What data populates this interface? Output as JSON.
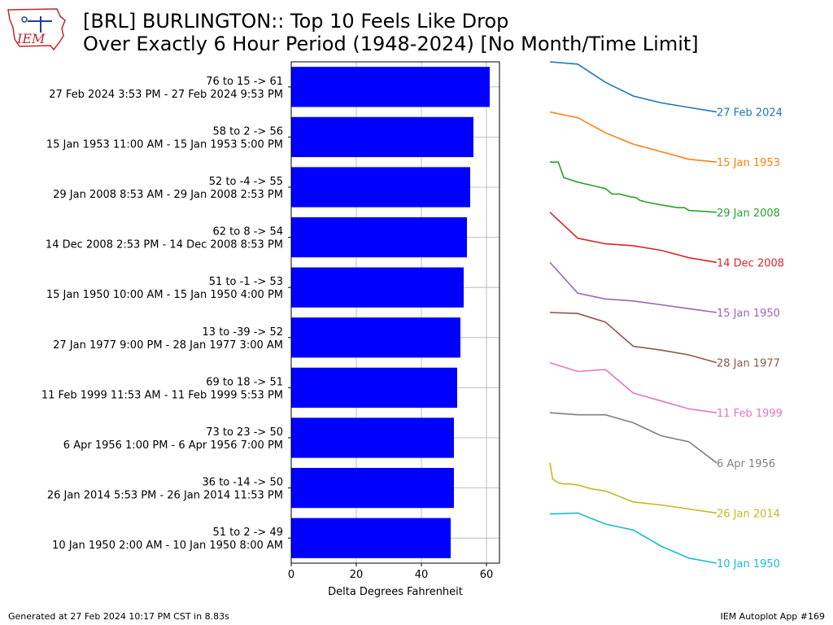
{
  "header": {
    "title_line1": "[BRL] BURLINGTON:: Top 10 Feels Like Drop",
    "title_line2": "Over Exactly 6 Hour Period (1948-2024) [No Month/Time Limit]",
    "logo_text": "IEM"
  },
  "footer": {
    "generated": "Generated at 27 Feb 2024 10:17 PM CST in 8.83s",
    "app": "IEM Autoplot App #169"
  },
  "colors": {
    "bar": "#0000ff",
    "logo": "#c0272d",
    "grid": "#b0b0b0"
  },
  "chart_data": {
    "type": "bar",
    "orientation": "horizontal",
    "xlabel": "Delta Degrees Fahrenheit",
    "xlim": [
      0,
      64
    ],
    "xticks": [
      0,
      20,
      40,
      60
    ],
    "grid": true,
    "rows": [
      {
        "label1": "76 to 15 -> 61",
        "label2": "27 Feb 2024 3:53 PM - 27 Feb 2024 9:53 PM",
        "value": 61,
        "trace_label": "27 Feb 2024",
        "color": "#1f77b4",
        "trace": [
          [
            0,
            76
          ],
          [
            0.5,
            75
          ],
          [
            1,
            67
          ],
          [
            1.5,
            61
          ],
          [
            2,
            58
          ],
          [
            2.5,
            56
          ],
          [
            3,
            54
          ]
        ]
      },
      {
        "label1": "58 to 2 -> 56",
        "label2": "15 Jan 1953 11:00 AM - 15 Jan 1953 5:00 PM",
        "value": 56,
        "trace_label": "15 Jan 1953",
        "color": "#ff7f0e",
        "trace": [
          [
            0,
            58
          ],
          [
            0.5,
            52
          ],
          [
            1,
            36
          ],
          [
            1.5,
            24
          ],
          [
            2,
            16
          ],
          [
            2.5,
            8
          ],
          [
            3,
            5
          ]
        ]
      },
      {
        "label1": "52 to -4 -> 55",
        "label2": "29 Jan 2008 8:53 AM - 29 Jan 2008 2:53 PM",
        "value": 55,
        "trace_label": "29 Jan 2008",
        "color": "#2ca02c",
        "trace": [
          [
            0,
            52
          ],
          [
            0.15,
            52
          ],
          [
            0.25,
            35
          ],
          [
            0.5,
            30
          ],
          [
            0.85,
            25
          ],
          [
            1,
            23
          ],
          [
            1.12,
            17
          ],
          [
            1.25,
            17
          ],
          [
            1.45,
            14
          ],
          [
            1.55,
            13
          ],
          [
            1.62,
            10
          ],
          [
            1.75,
            8
          ],
          [
            2,
            5
          ],
          [
            2.3,
            2
          ],
          [
            2.42,
            2
          ],
          [
            2.5,
            -1
          ],
          [
            2.75,
            -2
          ],
          [
            3,
            -3
          ]
        ]
      },
      {
        "label1": "62 to 8 -> 54",
        "label2": "14 Dec 2008 2:53 PM - 14 Dec 2008 8:53 PM",
        "value": 54,
        "trace_label": "14 Dec 2008",
        "color": "#d62728",
        "trace": [
          [
            0,
            62
          ],
          [
            0.5,
            34
          ],
          [
            1,
            28
          ],
          [
            1.5,
            26
          ],
          [
            2,
            21
          ],
          [
            2.5,
            13
          ],
          [
            3,
            8
          ]
        ]
      },
      {
        "label1": "51 to -1 -> 53",
        "label2": "15 Jan 1950 10:00 AM - 15 Jan 1950 4:00 PM",
        "value": 53,
        "trace_label": "15 Jan 1950",
        "color": "#9467bd",
        "trace": [
          [
            0,
            51
          ],
          [
            0.5,
            19
          ],
          [
            1,
            13
          ],
          [
            1.5,
            11
          ],
          [
            2,
            7
          ],
          [
            2.5,
            3
          ],
          [
            3,
            -1
          ]
        ]
      },
      {
        "label1": "13 to -39 -> 52",
        "label2": "27 Jan 1977 9:00 PM - 28 Jan 1977 3:00 AM",
        "value": 52,
        "trace_label": "28 Jan 1977",
        "color": "#8c564b",
        "trace": [
          [
            0,
            13
          ],
          [
            0.5,
            12
          ],
          [
            1,
            3
          ],
          [
            1.5,
            -22
          ],
          [
            2,
            -26
          ],
          [
            2.5,
            -31
          ],
          [
            3,
            -39
          ]
        ]
      },
      {
        "label1": "69 to 18 -> 51",
        "label2": "11 Feb 1999 11:53 AM - 11 Feb 1999 5:53 PM",
        "value": 51,
        "trace_label": "11 Feb 1999",
        "color": "#e377c2",
        "trace": [
          [
            0,
            69
          ],
          [
            0.5,
            60
          ],
          [
            1,
            62
          ],
          [
            1.5,
            38
          ],
          [
            2,
            30
          ],
          [
            2.5,
            22
          ],
          [
            3,
            18
          ]
        ]
      },
      {
        "label1": "73 to 23 -> 50",
        "label2": "6 Apr 1956 1:00 PM - 6 Apr 1956 7:00 PM",
        "value": 50,
        "trace_label": "6 Apr 1956",
        "color": "#7f7f7f",
        "trace": [
          [
            0,
            73
          ],
          [
            0.5,
            71
          ],
          [
            1,
            71
          ],
          [
            1.5,
            63
          ],
          [
            2,
            50
          ],
          [
            2.5,
            44
          ],
          [
            3,
            23
          ]
        ]
      },
      {
        "label1": "36 to -14 -> 50",
        "label2": "26 Jan 2014 5:53 PM - 26 Jan 2014 11:53 PM",
        "value": 50,
        "trace_label": "26 Jan 2014",
        "color": "#bcbd22",
        "trace": [
          [
            0,
            36
          ],
          [
            0.05,
            20
          ],
          [
            0.15,
            16
          ],
          [
            0.25,
            15
          ],
          [
            0.35,
            15
          ],
          [
            0.5,
            14
          ],
          [
            0.75,
            10
          ],
          [
            1,
            8
          ],
          [
            1.5,
            -3
          ],
          [
            2,
            -6
          ],
          [
            2.5,
            -10
          ],
          [
            3,
            -14
          ]
        ]
      },
      {
        "label1": "51 to 2 -> 49",
        "label2": "10 Jan 1950 2:00 AM - 10 Jan 1950 8:00 AM",
        "value": 49,
        "trace_label": "10 Jan 1950",
        "color": "#17becf",
        "trace": [
          [
            0,
            51
          ],
          [
            0.5,
            52
          ],
          [
            1,
            41
          ],
          [
            1.5,
            35
          ],
          [
            2,
            19
          ],
          [
            2.5,
            7
          ],
          [
            3,
            2
          ]
        ]
      }
    ]
  }
}
